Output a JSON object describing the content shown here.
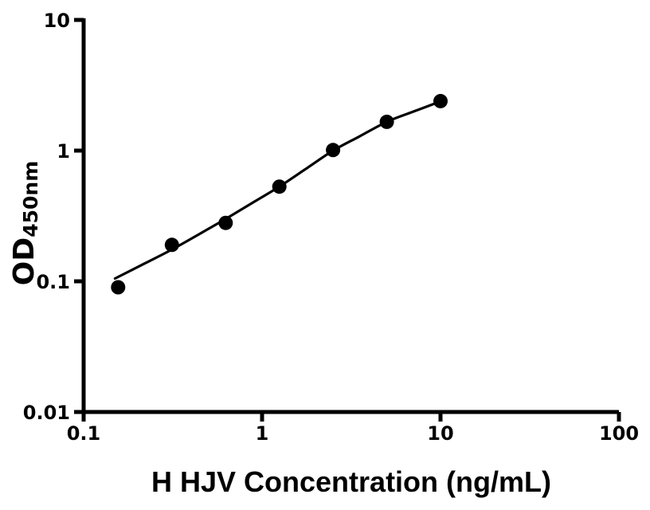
{
  "chart_data": {
    "type": "scatter",
    "title": "",
    "xlabel": "H HJV Concentration (ng/mL)",
    "ylabel_main": "OD",
    "ylabel_sub": "450nm",
    "x_scale": "log",
    "y_scale": "log",
    "xlim": [
      0.1,
      100
    ],
    "ylim": [
      0.01,
      10
    ],
    "x_ticks": [
      "0.1",
      "1",
      "10",
      "100"
    ],
    "y_ticks": [
      "0.01",
      "0.1",
      "1",
      "10"
    ],
    "grid": false,
    "legend": "none",
    "axis_color": "#000000",
    "marker_color": "#000000",
    "curve_color": "#000000",
    "background_color": "#ffffff",
    "series": [
      {
        "name": "standard-curve-points",
        "marker": "filled-circle",
        "x": [
          0.156,
          0.3125,
          0.625,
          1.25,
          2.5,
          5,
          10
        ],
        "y": [
          0.09,
          0.19,
          0.28,
          0.53,
          1.01,
          1.66,
          2.39
        ]
      }
    ],
    "fit_curve": {
      "name": "four-parameter-logistic-fit",
      "x": [
        0.15,
        0.22,
        0.3125,
        0.45,
        0.625,
        0.9,
        1.25,
        1.8,
        2.5,
        3.5,
        5,
        7,
        10
      ],
      "y": [
        0.105,
        0.137,
        0.175,
        0.232,
        0.3,
        0.405,
        0.53,
        0.74,
        1.0,
        1.28,
        1.66,
        1.98,
        2.38
      ]
    }
  }
}
